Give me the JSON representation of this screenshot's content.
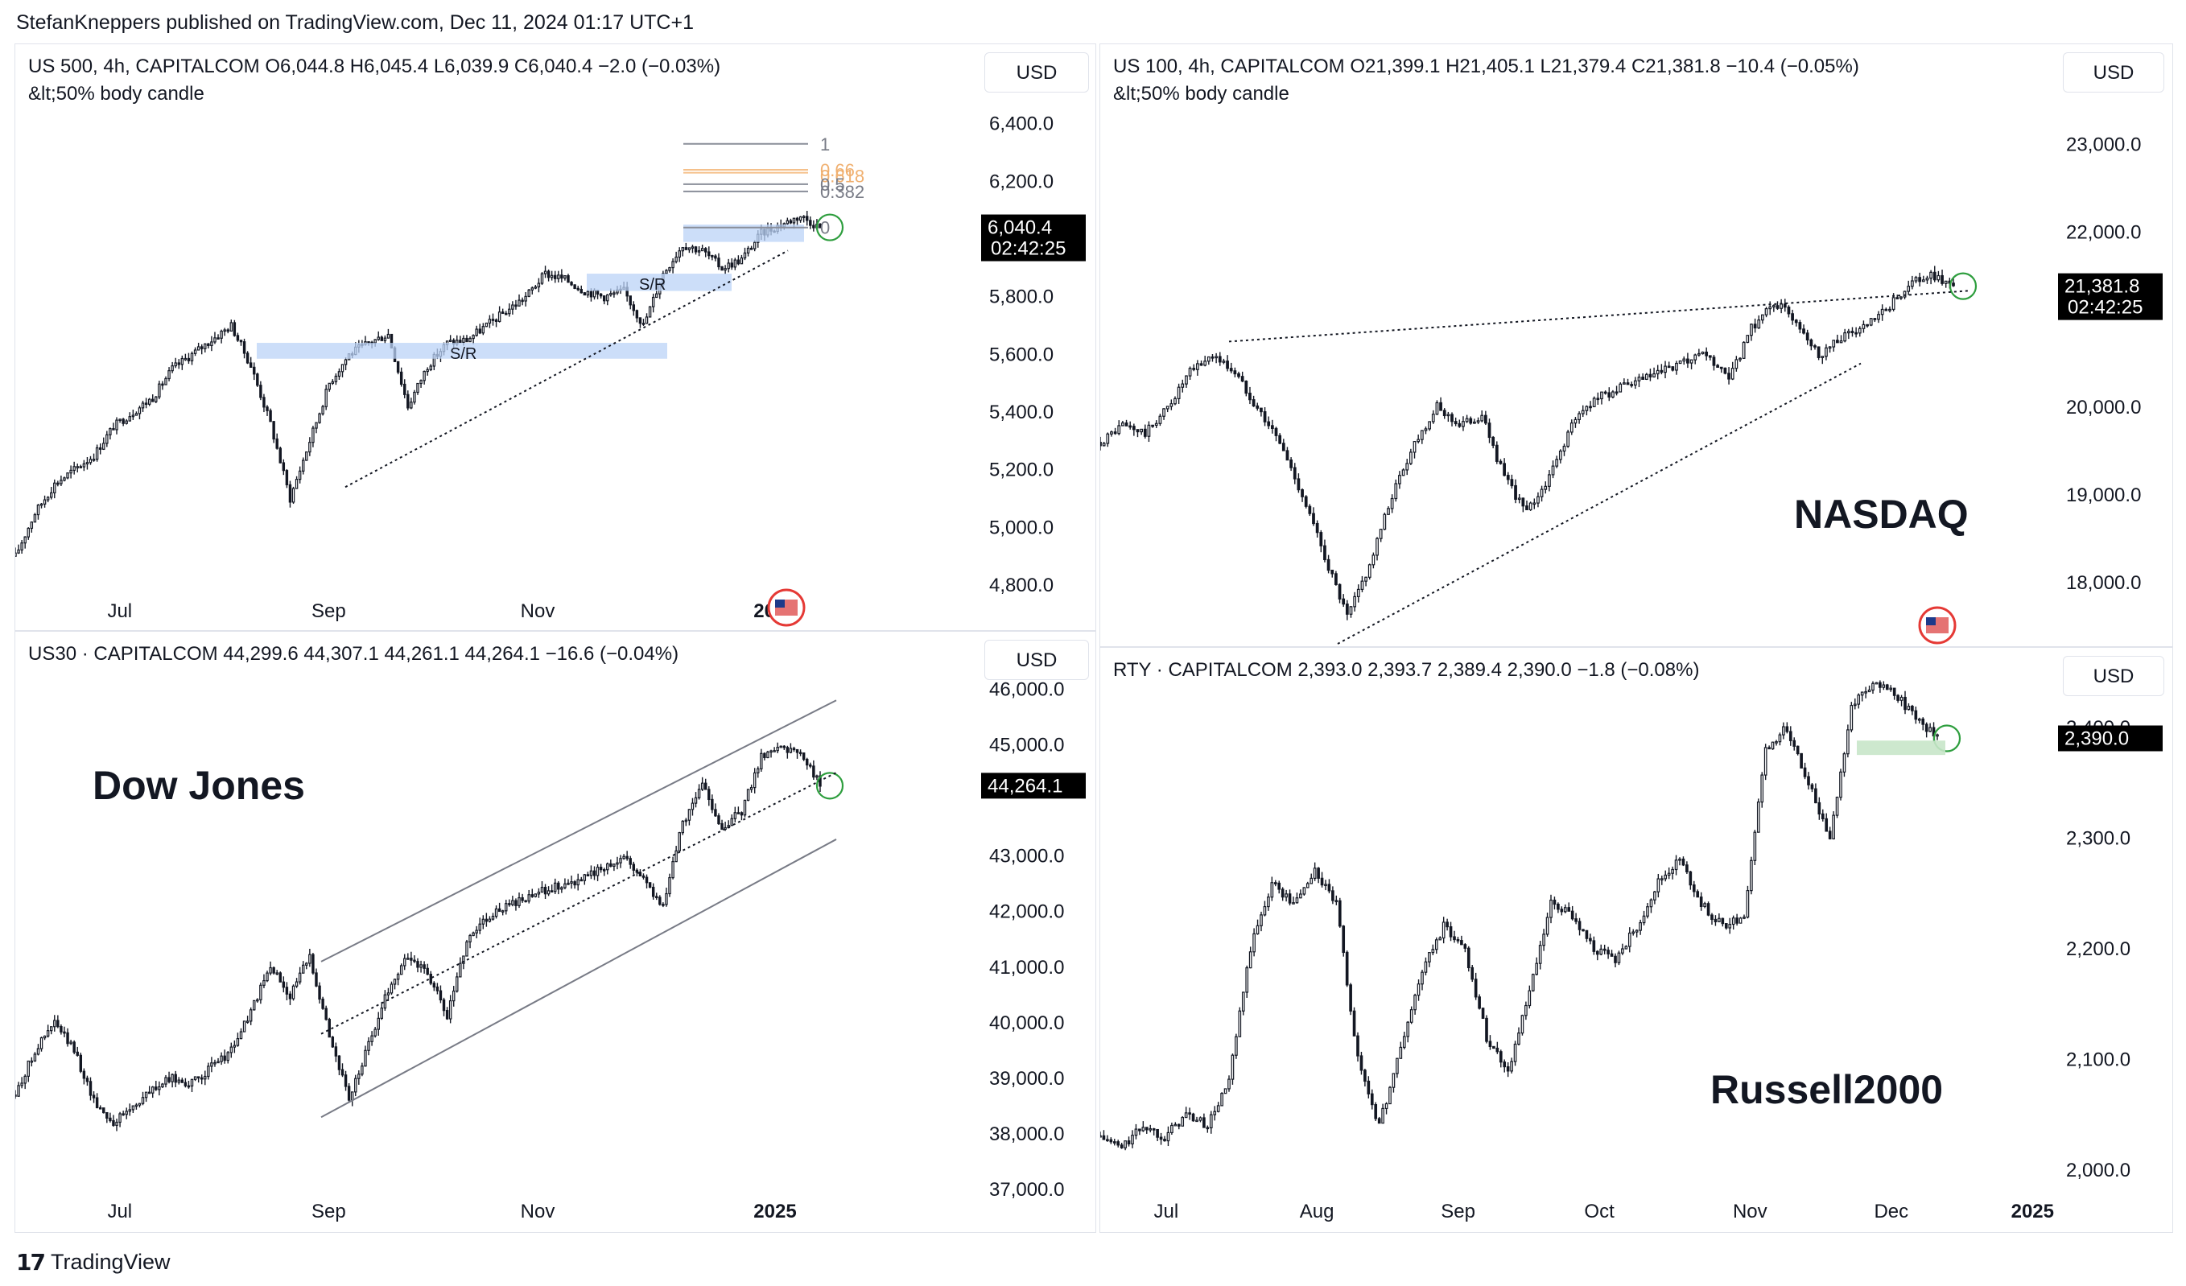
{
  "publisher": "StefanKneppers published on TradingView.com, Dec 11, 2024 01:17 UTC+1",
  "footer": "TradingView",
  "colors": {
    "candle": "#131722",
    "zone": "#bbd3f7",
    "zone_green": "#c8e6c9",
    "circle": "#2e9e3e",
    "price_tag": "#000000",
    "fib_orange": "#f5c08a",
    "fib_gray": "#8a8e99"
  },
  "chart_data": [
    {
      "type": "candlestick",
      "symbol_line": "US 500, 4h, CAPITALCOM  O6,044.8  H6,045.4  L6,039.9  C6,040.4  −2.0 (−0.03%)",
      "indicator": "&lt;50% body candle",
      "currency": "USD",
      "yticks": [
        "6,400.0",
        "6,200.0",
        "5,800.0",
        "5,600.0",
        "5,400.0",
        "5,200.0",
        "5,000.0",
        "4,800.0"
      ],
      "ytick_values": [
        6400,
        6200,
        5800,
        5600,
        5400,
        5200,
        5000,
        4800
      ],
      "ylim": [
        4750,
        6480
      ],
      "xticks": [
        {
          "label": "Jul",
          "x": 0.11
        },
        {
          "label": "Sep",
          "x": 0.33
        },
        {
          "label": "Nov",
          "x": 0.55
        },
        {
          "label": "2025",
          "x": 0.8,
          "bold": true
        }
      ],
      "last_price": "6,040.4",
      "countdown": "02:42:25",
      "last_value": 6040.4,
      "zone_labels": [
        "S/R",
        "S/R"
      ],
      "fib_labels": [
        "1",
        "0.66",
        "0.618",
        "0.5",
        "0.382",
        "0"
      ],
      "series": [
        4900,
        5050,
        5150,
        5200,
        5250,
        5350,
        5400,
        5450,
        5550,
        5600,
        5650,
        5700,
        5560,
        5360,
        5100,
        5300,
        5500,
        5600,
        5640,
        5670,
        5420,
        5560,
        5640,
        5650,
        5700,
        5750,
        5800,
        5880,
        5860,
        5820,
        5800,
        5820,
        5700,
        5880,
        5980,
        5960,
        5900,
        5930,
        6020,
        6050,
        6080,
        6040
      ]
    },
    {
      "type": "candlestick",
      "symbol_line": "US 100, 4h, CAPITALCOM  O21,399.1  H21,405.1  L21,379.4  C21,381.8  −10.4 (−0.05%)",
      "indicator": "&lt;50% body candle",
      "currency": "USD",
      "yticks": [
        "23,000.0",
        "22,000.0",
        "20,000.0",
        "19,000.0",
        "18,000.0"
      ],
      "ytick_values": [
        23000,
        22000,
        20000,
        19000,
        18000
      ],
      "ylim": [
        17300,
        23500
      ],
      "xticks": [],
      "last_price": "21,381.8",
      "countdown": "02:42:25",
      "last_value": 21381.8,
      "annotation": "NASDAQ",
      "series": [
        19600,
        19800,
        19700,
        20000,
        20400,
        20600,
        20400,
        20000,
        19600,
        19000,
        18300,
        17600,
        18200,
        19000,
        19600,
        20000,
        19800,
        19900,
        19200,
        18800,
        19200,
        19800,
        20100,
        20200,
        20300,
        20400,
        20500,
        20600,
        20300,
        20900,
        21200,
        21000,
        20600,
        20800,
        20900,
        21100,
        21400,
        21500,
        21400
      ]
    },
    {
      "type": "candlestick",
      "symbol_line": "US30 · CAPITALCOM  44,299.6  44,307.1  44,261.1  44,264.1  −16.6 (−0.04%)",
      "currency": "USD",
      "yticks": [
        "46,000.0",
        "45,000.0",
        "43,000.0",
        "42,000.0",
        "41,000.0",
        "40,000.0",
        "39,000.0",
        "38,000.0",
        "37,000.0"
      ],
      "ytick_values": [
        46000,
        45000,
        43000,
        42000,
        41000,
        40000,
        39000,
        38000,
        37000
      ],
      "ylim": [
        36900,
        46600
      ],
      "xticks": [
        {
          "label": "Jul",
          "x": 0.11
        },
        {
          "label": "Sep",
          "x": 0.33
        },
        {
          "label": "Nov",
          "x": 0.55
        },
        {
          "label": "2025",
          "x": 0.8,
          "bold": true
        }
      ],
      "last_price": "44,264.1",
      "last_value": 44264.1,
      "annotation": "Dow Jones",
      "series": [
        38700,
        39500,
        40000,
        39500,
        38600,
        38200,
        38500,
        38800,
        39000,
        38900,
        39200,
        39500,
        40200,
        41000,
        40500,
        41200,
        39800,
        38600,
        39600,
        40600,
        41200,
        40900,
        40100,
        41500,
        41900,
        42100,
        42200,
        42400,
        42500,
        42600,
        42800,
        43000,
        42600,
        42100,
        43600,
        44300,
        43500,
        43800,
        44800,
        45000,
        44800,
        44300
      ]
    },
    {
      "type": "candlestick",
      "symbol_line": "RTY · CAPITALCOM  2,393.0  2,393.7  2,389.4  2,390.0  −1.8 (−0.08%)",
      "currency": "USD",
      "yticks": [
        "2,400.0",
        "2,300.0",
        "2,200.0",
        "2,100.0",
        "2,000.0"
      ],
      "ytick_values": [
        2400,
        2300,
        2200,
        2100,
        2000
      ],
      "ylim": [
        1970,
        2450
      ],
      "xticks": [
        {
          "label": "Jul",
          "x": 0.07
        },
        {
          "label": "Aug",
          "x": 0.23
        },
        {
          "label": "Sep",
          "x": 0.38
        },
        {
          "label": "Oct",
          "x": 0.53
        },
        {
          "label": "Nov",
          "x": 0.69
        },
        {
          "label": "Dec",
          "x": 0.84
        },
        {
          "label": "2025",
          "x": 0.99,
          "bold": true
        }
      ],
      "last_price": "2,390.0",
      "last_value": 2390.0,
      "annotation": "Russell2000",
      "series": [
        2030,
        2020,
        2040,
        2030,
        2050,
        2040,
        2080,
        2200,
        2260,
        2240,
        2270,
        2240,
        2100,
        2040,
        2110,
        2180,
        2220,
        2200,
        2120,
        2090,
        2160,
        2240,
        2230,
        2200,
        2190,
        2220,
        2260,
        2280,
        2240,
        2220,
        2230,
        2380,
        2400,
        2350,
        2300,
        2420,
        2440,
        2430,
        2410,
        2390
      ]
    }
  ]
}
